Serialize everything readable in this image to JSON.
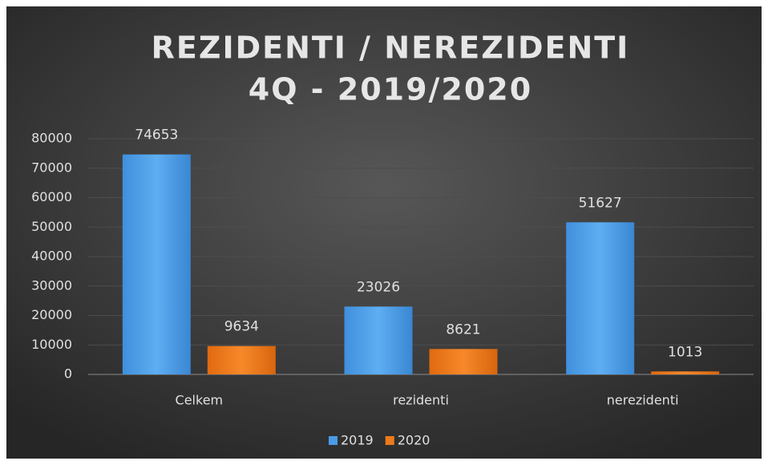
{
  "chart_data": {
    "type": "bar",
    "title": [
      "REZIDENTI / NEREZIDENTI",
      "4Q - 2019/2020"
    ],
    "categories": [
      "Celkem",
      "rezidenti",
      "nerezidenti"
    ],
    "series": [
      {
        "name": "2019",
        "color": "#4a9be6",
        "values": [
          74653,
          23026,
          51627
        ]
      },
      {
        "name": "2020",
        "color": "#ee7a1c",
        "values": [
          9634,
          8621,
          1013
        ]
      }
    ],
    "ylim": [
      0,
      80000
    ],
    "yticks": [
      0,
      10000,
      20000,
      30000,
      40000,
      50000,
      60000,
      70000,
      80000
    ],
    "grid": true,
    "legend": "bottom"
  }
}
